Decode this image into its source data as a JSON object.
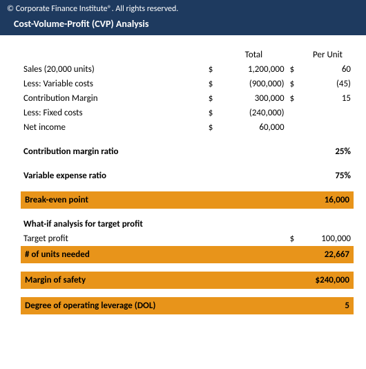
{
  "header": {
    "copyright": "© Corporate Finance Institute®. All rights reserved.",
    "title": "Cost-Volume-Profit (CVP) Analysis"
  },
  "columns": {
    "total": "Total",
    "per_unit": "Per Unit"
  },
  "rows": {
    "sales_label": "Sales (20,000 units)",
    "sales_total": "1,200,000",
    "sales_unit": "60",
    "varcost_label": "Less: Variable costs",
    "varcost_total": "(900,000)",
    "varcost_unit": "(45)",
    "cm_label": "Contribution Margin",
    "cm_total": "300,000",
    "cm_unit": "15",
    "fixed_label": "Less: Fixed costs",
    "fixed_total": "(240,000)",
    "netinc_label": "Net income",
    "netinc_total": "60,000"
  },
  "ratios": {
    "cm_ratio_label": "Contribution margin ratio",
    "cm_ratio_value": "25%",
    "ve_ratio_label": "Variable expense ratio",
    "ve_ratio_value": "75%"
  },
  "breakeven": {
    "label": "Break-even point",
    "value": "16,000"
  },
  "whatif": {
    "heading": "What-if analysis for target profit",
    "target_label": "Target profit",
    "target_value": "100,000",
    "units_label": "# of units needed",
    "units_value": "22,667"
  },
  "margin_safety": {
    "label": "Margin of safety",
    "value": "$240,000"
  },
  "dol": {
    "label": "Degree of operating leverage (DOL)",
    "value": "5"
  },
  "currency": "$",
  "colors": {
    "header_bg": "#1e3a5f",
    "orange_bg": "#e8941a",
    "text": "#000000",
    "header_text": "#ffffff"
  }
}
